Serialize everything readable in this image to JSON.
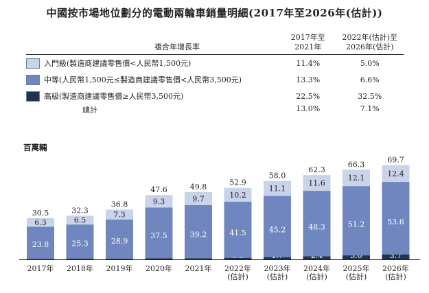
{
  "title": "中國按市場地位劃分的電動兩輪車銷量明細(2017年至2026年(估計))",
  "table": {
    "header_label": "複合年增長率",
    "col1_header": [
      "2017年至",
      "2021年"
    ],
    "col2_header": [
      "2022年(估計)至",
      "2026年(估計)"
    ],
    "rows": [
      {
        "label": "入門級(製造商建議零售價<人民幣1,500元)",
        "v1": "11.4%",
        "v2": "5.0%",
        "color": "#c9d3e9"
      },
      {
        "label": "中等(人民幣1,500元≤製造商建議零售價<人民幣3,500元)",
        "v1": "13.3%",
        "v2": "6.6%",
        "color": "#6f87be"
      },
      {
        "label": "高級(製造商建議零售價≥人民幣3,500元)",
        "v1": "22.5%",
        "v2": "32.5%",
        "color": "#1f3450"
      }
    ],
    "total_label": "總計",
    "total_v1": "13.0%",
    "total_v2": "7.1%"
  },
  "unit_label": "百萬輛",
  "chart_data": {
    "type": "bar",
    "stacked": true,
    "categories": [
      [
        "2017年"
      ],
      [
        "2018年"
      ],
      [
        "2019年"
      ],
      [
        "2020年"
      ],
      [
        "2021年"
      ],
      [
        "2022年",
        "(估計)"
      ],
      [
        "2023年",
        "(估計)"
      ],
      [
        "2024年",
        "(估計)"
      ],
      [
        "2025年",
        "(估計)"
      ],
      [
        "2026年",
        "(估計)"
      ]
    ],
    "series": [
      {
        "name": "高級",
        "color": "#1f3450",
        "values": [
          0.4,
          0.5,
          0.6,
          0.8,
          0.9,
          1.2,
          1.7,
          2.4,
          3.0,
          3.7
        ]
      },
      {
        "name": "中等",
        "color": "#6f87be",
        "values": [
          23.8,
          25.3,
          28.9,
          37.5,
          39.2,
          41.5,
          45.2,
          48.3,
          51.2,
          53.6
        ]
      },
      {
        "name": "入門級",
        "color": "#c9d3e9",
        "values": [
          6.3,
          6.5,
          7.3,
          9.3,
          9.7,
          10.2,
          11.1,
          11.6,
          12.1,
          12.4
        ]
      }
    ],
    "totals": [
      30.5,
      32.3,
      36.8,
      47.6,
      49.8,
      52.9,
      58.0,
      62.3,
      66.3,
      69.7
    ],
    "ylim": [
      0,
      70
    ],
    "grid": false
  }
}
